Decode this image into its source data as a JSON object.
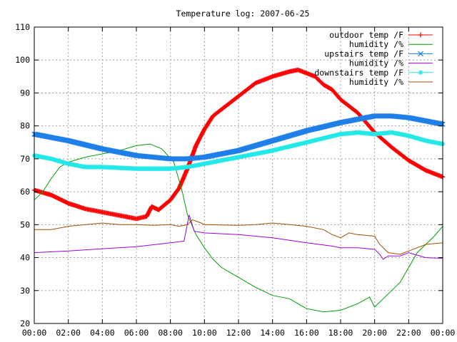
{
  "chart_data": {
    "type": "line",
    "title": "Temperature log: 2007-06-25",
    "xlabel": "",
    "ylabel": "",
    "xlim": [
      0,
      24
    ],
    "ylim": [
      20,
      110
    ],
    "x_ticks": [
      "00:00",
      "02:00",
      "04:00",
      "06:00",
      "08:00",
      "10:00",
      "12:00",
      "14:00",
      "16:00",
      "18:00",
      "20:00",
      "22:00",
      "00:00"
    ],
    "y_ticks": [
      "20",
      "30",
      "40",
      "50",
      "60",
      "70",
      "80",
      "90",
      "100",
      "110"
    ],
    "grid": true,
    "legend_position": "top-right",
    "series": [
      {
        "name": "outdoor temp /F",
        "color": "#ff0000",
        "marker": "plus",
        "points": [
          [
            0,
            60.5
          ],
          [
            1,
            59
          ],
          [
            2,
            56.5
          ],
          [
            3,
            54.8
          ],
          [
            4,
            53.8
          ],
          [
            5,
            52.8
          ],
          [
            6,
            51.8
          ],
          [
            6.6,
            52.5
          ],
          [
            6.9,
            55.5
          ],
          [
            7.3,
            54.5
          ],
          [
            8,
            57.5
          ],
          [
            8.5,
            61
          ],
          [
            9,
            67
          ],
          [
            9.5,
            74
          ],
          [
            10,
            79
          ],
          [
            10.5,
            83
          ],
          [
            11,
            85
          ],
          [
            12,
            89
          ],
          [
            13,
            93
          ],
          [
            14,
            95
          ],
          [
            15,
            96.5
          ],
          [
            15.5,
            97
          ],
          [
            16,
            96
          ],
          [
            16.5,
            95
          ],
          [
            17,
            92.5
          ],
          [
            17.5,
            91
          ],
          [
            18,
            88
          ],
          [
            18.5,
            86
          ],
          [
            19,
            84
          ],
          [
            19.5,
            81
          ],
          [
            20,
            78
          ],
          [
            21,
            73.5
          ],
          [
            22,
            69.5
          ],
          [
            23,
            66.5
          ],
          [
            24,
            64.5
          ]
        ]
      },
      {
        "name": "humidity /%",
        "color": "#00a000",
        "marker": "none",
        "points": [
          [
            0,
            57.5
          ],
          [
            0.5,
            60
          ],
          [
            1,
            64
          ],
          [
            1.5,
            67.5
          ],
          [
            2,
            69
          ],
          [
            3,
            70.5
          ],
          [
            4,
            71.5
          ],
          [
            5,
            72.5
          ],
          [
            6,
            74
          ],
          [
            6.8,
            74.5
          ],
          [
            7.5,
            73
          ],
          [
            8.2,
            69
          ],
          [
            8.7,
            60
          ],
          [
            9,
            53
          ],
          [
            9.5,
            47
          ],
          [
            10,
            43
          ],
          [
            10.5,
            39.5
          ],
          [
            11,
            37
          ],
          [
            12,
            34
          ],
          [
            13,
            31
          ],
          [
            14,
            28.5
          ],
          [
            15,
            27.5
          ],
          [
            15.5,
            26
          ],
          [
            16,
            24.5
          ],
          [
            17,
            23.5
          ],
          [
            18,
            24
          ],
          [
            19,
            26
          ],
          [
            19.7,
            28
          ],
          [
            20,
            25
          ],
          [
            20.5,
            27.5
          ],
          [
            21,
            30
          ],
          [
            21.5,
            32.5
          ],
          [
            22,
            37
          ],
          [
            22.5,
            41.5
          ],
          [
            23,
            44
          ],
          [
            23.5,
            46.5
          ],
          [
            24,
            49.5
          ]
        ]
      },
      {
        "name": "upstairs temp /F",
        "color": "#1e7fe8",
        "marker": "cross",
        "points": [
          [
            0,
            77.5
          ],
          [
            2,
            75.5
          ],
          [
            4,
            73
          ],
          [
            6,
            71
          ],
          [
            8,
            70
          ],
          [
            9,
            70
          ],
          [
            10,
            70.5
          ],
          [
            12,
            72.5
          ],
          [
            14,
            75.5
          ],
          [
            16,
            78.5
          ],
          [
            18,
            81
          ],
          [
            20,
            83
          ],
          [
            21,
            83
          ],
          [
            22,
            82.5
          ],
          [
            24,
            80.5
          ]
        ]
      },
      {
        "name": "humidity /%",
        "color": "#a000e0",
        "marker": "none",
        "points": [
          [
            0,
            41.5
          ],
          [
            2,
            42
          ],
          [
            4,
            42.7
          ],
          [
            6,
            43.3
          ],
          [
            8,
            44.5
          ],
          [
            8.8,
            45
          ],
          [
            9.1,
            53
          ],
          [
            9.4,
            48
          ],
          [
            10,
            47.5
          ],
          [
            12,
            47
          ],
          [
            14,
            46
          ],
          [
            16,
            44.5
          ],
          [
            17.5,
            43.5
          ],
          [
            18,
            43
          ],
          [
            19,
            43
          ],
          [
            20,
            42.5
          ],
          [
            20.3,
            41
          ],
          [
            20.5,
            39.5
          ],
          [
            20.8,
            40.5
          ],
          [
            21.5,
            40.5
          ],
          [
            22,
            41.5
          ],
          [
            23,
            40
          ],
          [
            24,
            39.8
          ]
        ]
      },
      {
        "name": "downstairs temp /F",
        "color": "#22e8e8",
        "marker": "star",
        "points": [
          [
            0,
            71
          ],
          [
            1,
            70
          ],
          [
            2,
            68.5
          ],
          [
            3,
            67.5
          ],
          [
            4,
            67.5
          ],
          [
            6,
            67
          ],
          [
            8,
            67
          ],
          [
            9,
            67.5
          ],
          [
            10,
            68.5
          ],
          [
            12,
            70.5
          ],
          [
            14,
            72.5
          ],
          [
            16,
            75
          ],
          [
            18,
            77.5
          ],
          [
            19,
            78
          ],
          [
            20,
            77.5
          ],
          [
            21,
            78
          ],
          [
            22,
            77
          ],
          [
            23,
            75.5
          ],
          [
            24,
            74.5
          ]
        ]
      },
      {
        "name": "humidity /%",
        "color": "#a05000",
        "marker": "none",
        "points": [
          [
            0,
            48.5
          ],
          [
            1,
            48.5
          ],
          [
            2,
            49.5
          ],
          [
            3,
            50
          ],
          [
            4,
            50.5
          ],
          [
            5,
            50
          ],
          [
            6,
            50
          ],
          [
            7,
            49.8
          ],
          [
            8,
            50
          ],
          [
            8.5,
            49.5
          ],
          [
            9,
            50
          ],
          [
            9.3,
            51.5
          ],
          [
            9.8,
            50.5
          ],
          [
            10,
            50
          ],
          [
            12,
            49.8
          ],
          [
            13,
            50
          ],
          [
            14,
            50.5
          ],
          [
            15,
            50
          ],
          [
            16,
            49.5
          ],
          [
            17,
            48.5
          ],
          [
            17.5,
            47
          ],
          [
            18,
            46
          ],
          [
            18.5,
            47.5
          ],
          [
            19,
            47
          ],
          [
            20,
            46.5
          ],
          [
            20.3,
            44
          ],
          [
            20.8,
            41.5
          ],
          [
            21.5,
            41
          ],
          [
            22,
            42
          ],
          [
            23,
            44
          ],
          [
            24,
            44.5
          ]
        ]
      }
    ]
  }
}
